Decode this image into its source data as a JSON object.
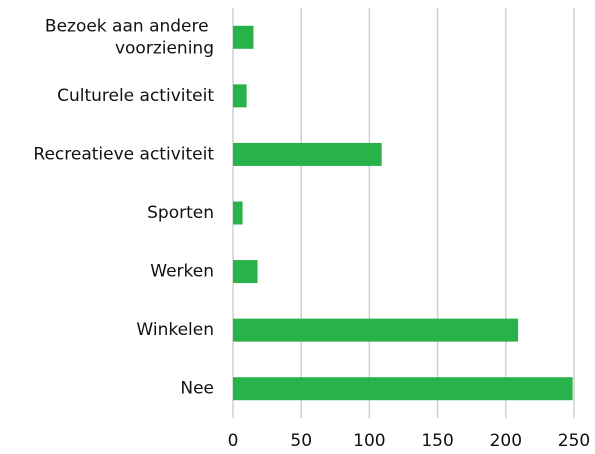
{
  "chart_data": {
    "type": "hbar",
    "categories": [
      "Bezoek aan andere voorziening",
      "Culturele activiteit",
      "Recreatieve activiteit",
      "Sporten",
      "Werken",
      "Winkelen",
      "Nee"
    ],
    "values": [
      15,
      10,
      109,
      7,
      18,
      209,
      249
    ],
    "color": "#27b24a",
    "xlim": [
      0,
      250
    ],
    "xticks": [
      0,
      50,
      100,
      150,
      200,
      250
    ],
    "grid": true
  }
}
